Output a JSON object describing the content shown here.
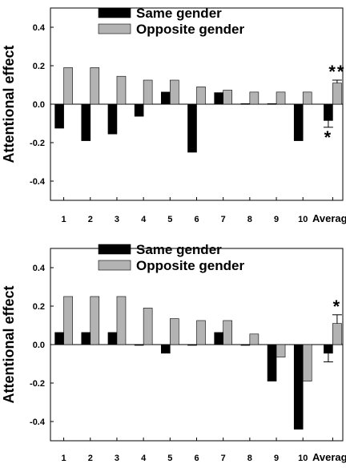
{
  "colors": {
    "same": "#000000",
    "opposite": "#b3b3b3",
    "axis": "#000000",
    "background": "#ffffff"
  },
  "chart_data": [
    {
      "type": "bar",
      "ylabel": "Attentional effect",
      "xlabel": "",
      "title": "",
      "ylim": [
        -0.5,
        0.5
      ],
      "yticks": [
        -0.4,
        -0.2,
        0.0,
        0.2,
        0.4
      ],
      "ytick_labels": [
        "-0.4",
        "-0.2",
        "0.0",
        "0.2",
        "0.4"
      ],
      "grid": false,
      "legend_position": "top",
      "categories": [
        "1",
        "2",
        "3",
        "4",
        "5",
        "6",
        "7",
        "8",
        "9",
        "10",
        "Average"
      ],
      "series": [
        {
          "name": "Same gender",
          "color": "#000000",
          "values": [
            -0.125,
            -0.19,
            -0.155,
            -0.063,
            0.063,
            -0.25,
            0.06,
            0.003,
            0.003,
            -0.19,
            -0.085
          ],
          "errors": [
            null,
            null,
            null,
            null,
            null,
            null,
            null,
            null,
            null,
            null,
            0.035
          ]
        },
        {
          "name": "Opposite gender",
          "color": "#b3b3b3",
          "values": [
            0.19,
            0.19,
            0.145,
            0.125,
            0.125,
            0.09,
            0.073,
            0.063,
            0.063,
            0.063,
            0.11
          ],
          "errors": [
            null,
            null,
            null,
            null,
            null,
            null,
            null,
            null,
            null,
            null,
            0.015
          ]
        }
      ],
      "annotations": [
        {
          "text": "**",
          "category": "Average",
          "series": "Opposite gender",
          "position": "above"
        },
        {
          "text": "*",
          "category": "Average",
          "series": "Same gender",
          "position": "below"
        }
      ]
    },
    {
      "type": "bar",
      "ylabel": "Attentional effect",
      "xlabel": "",
      "title": "",
      "ylim": [
        -0.5,
        0.5
      ],
      "yticks": [
        -0.4,
        -0.2,
        0.0,
        0.2,
        0.4
      ],
      "ytick_labels": [
        "-0.4",
        "-0.2",
        "0.0",
        "0.2",
        "0.4"
      ],
      "grid": false,
      "legend_position": "top",
      "categories": [
        "1",
        "2",
        "3",
        "4",
        "5",
        "6",
        "7",
        "8",
        "9",
        "10",
        "Average"
      ],
      "series": [
        {
          "name": "Same gender",
          "color": "#000000",
          "values": [
            0.063,
            0.063,
            0.063,
            -0.003,
            -0.045,
            -0.003,
            0.063,
            0.0,
            -0.19,
            -0.44,
            -0.045
          ],
          "errors": [
            null,
            null,
            null,
            null,
            null,
            null,
            null,
            null,
            null,
            null,
            0.045
          ]
        },
        {
          "name": "Opposite gender",
          "color": "#b3b3b3",
          "values": [
            0.25,
            0.25,
            0.25,
            0.19,
            0.135,
            0.125,
            0.125,
            0.055,
            -0.065,
            -0.19,
            0.11
          ],
          "errors": [
            null,
            null,
            null,
            null,
            null,
            null,
            null,
            null,
            null,
            null,
            0.045
          ]
        }
      ],
      "annotations": [
        {
          "text": "*",
          "category": "Average",
          "series": "Opposite gender",
          "position": "above"
        }
      ]
    }
  ]
}
